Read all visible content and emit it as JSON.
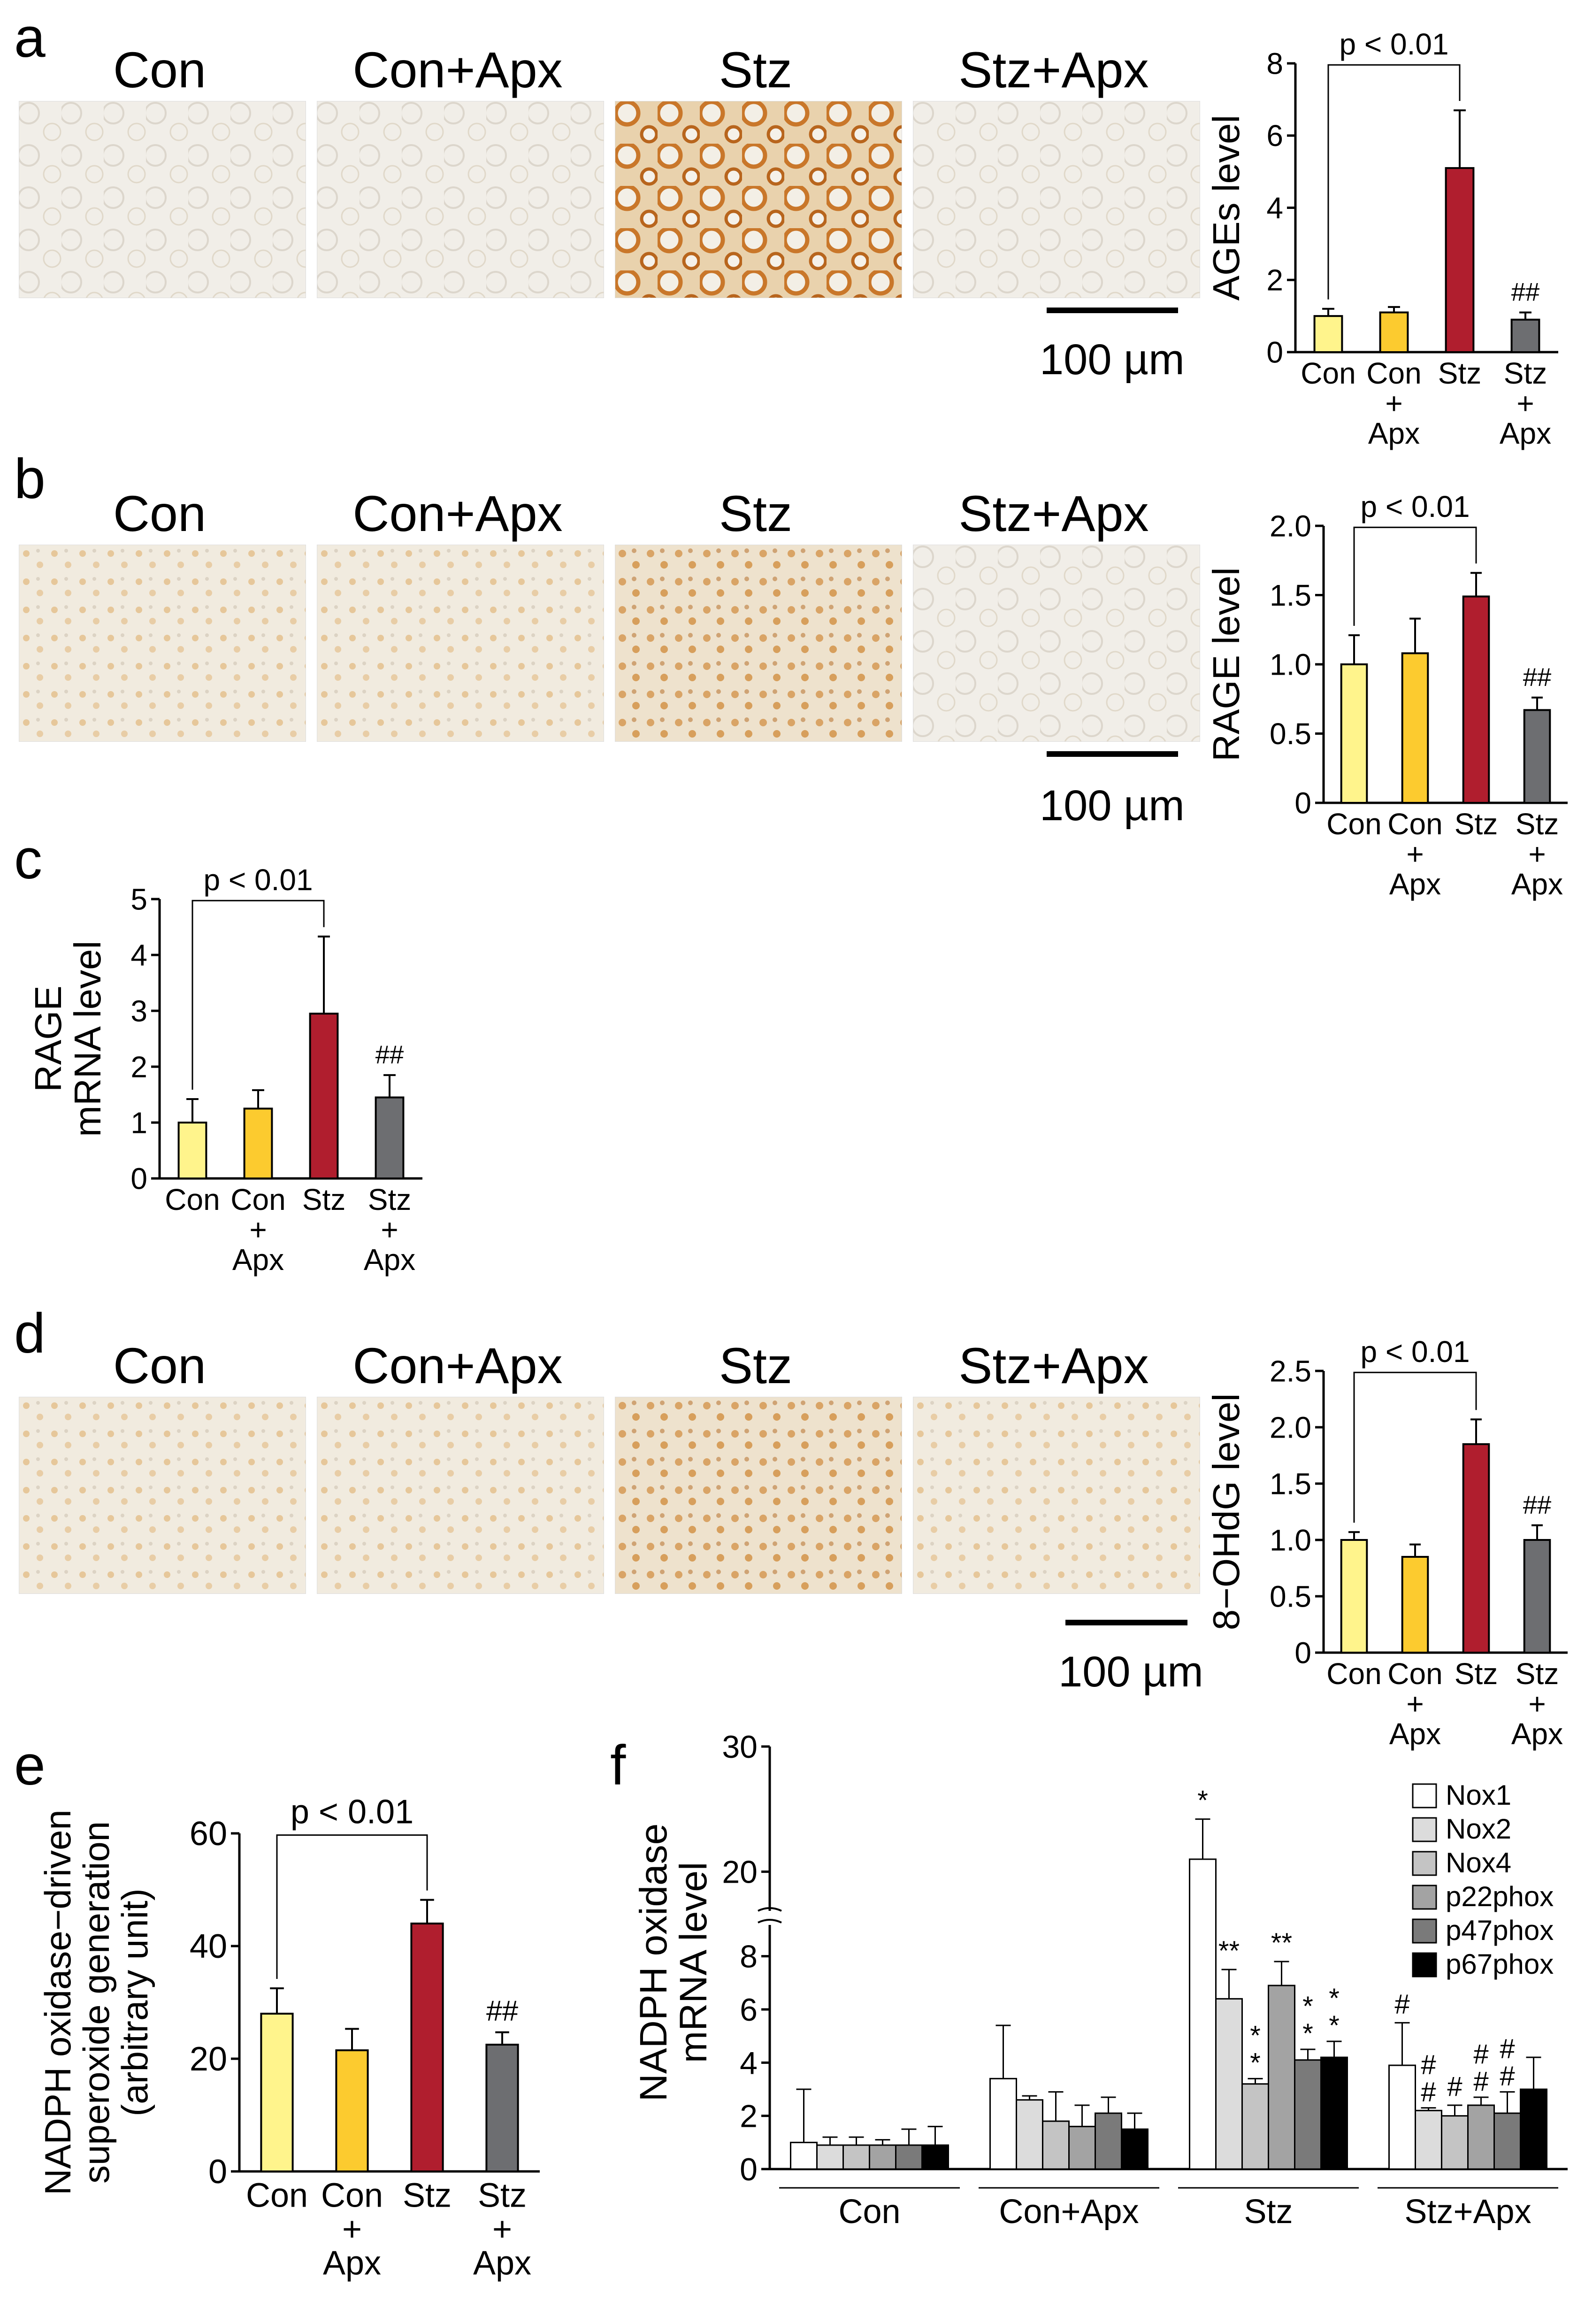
{
  "panel_labels": {
    "a": "a",
    "b": "b",
    "c": "c",
    "d": "d",
    "e": "e",
    "f": "f"
  },
  "micro_titles": [
    "Con",
    "Con+Apx",
    "Stz",
    "Stz+Apx"
  ],
  "scale_bar_text": "100 µm",
  "colors": {
    "con": "#FFF48C",
    "conapx": "#FCCB2F",
    "stz": "#B01E2E",
    "stzapx": "#6D6E71",
    "nox1": "#FFFFFF",
    "nox2": "#DCDCDC",
    "nox4": "#C4C4C4",
    "p22phox": "#A3A3A3",
    "p47phox": "#7A7A7A",
    "p67phox": "#000000"
  },
  "chart_data": [
    {
      "id": "a",
      "type": "bar",
      "ylabel": "AGEs level",
      "ylim": [
        0,
        8
      ],
      "yticks": [
        "0",
        "2",
        "4",
        "6",
        "8"
      ],
      "categories": [
        "Con",
        "Con\n+\nApx",
        "Stz",
        "Stz\n+\nApx"
      ],
      "values": [
        1.0,
        1.1,
        5.1,
        0.9
      ],
      "errors": [
        0.2,
        0.15,
        1.6,
        0.2
      ],
      "significance": "p < 0.01",
      "annotation": "##"
    },
    {
      "id": "b",
      "type": "bar",
      "ylabel": "RAGE level",
      "ylim": [
        0,
        2.0
      ],
      "yticks": [
        "0",
        "0.5",
        "1.0",
        "1.5",
        "2.0"
      ],
      "categories": [
        "Con",
        "Con\n+\nApx",
        "Stz",
        "Stz\n+\nApx"
      ],
      "values": [
        1.0,
        1.08,
        1.49,
        0.67
      ],
      "errors": [
        0.21,
        0.25,
        0.17,
        0.09
      ],
      "significance": "p < 0.01",
      "annotation": "##"
    },
    {
      "id": "c",
      "type": "bar",
      "ylabel": "RAGE\nmRNA level",
      "ylim": [
        0,
        5
      ],
      "yticks": [
        "0",
        "1",
        "2",
        "3",
        "4",
        "5"
      ],
      "categories": [
        "Con",
        "Con\n+\nApx",
        "Stz",
        "Stz\n+\nApx"
      ],
      "values": [
        1.0,
        1.25,
        2.95,
        1.45
      ],
      "errors": [
        0.42,
        0.33,
        1.38,
        0.4
      ],
      "significance": "p < 0.01",
      "annotation": "##"
    },
    {
      "id": "d",
      "type": "bar",
      "ylabel": "8−OHdG level",
      "ylim": [
        0,
        2.5
      ],
      "yticks": [
        "0",
        "0.5",
        "1.0",
        "1.5",
        "2.0",
        "2.5"
      ],
      "categories": [
        "Con",
        "Con\n+\nApx",
        "Stz",
        "Stz\n+\nApx"
      ],
      "values": [
        1.0,
        0.85,
        1.85,
        1.0
      ],
      "errors": [
        0.07,
        0.11,
        0.22,
        0.13
      ],
      "significance": "p < 0.01",
      "annotation": "##"
    },
    {
      "id": "e",
      "type": "bar",
      "ylabel": "NADPH oxidase−driven\nsuperoxide generation\n(arbitrary unit)",
      "ylim": [
        0,
        60
      ],
      "yticks": [
        "0",
        "20",
        "40",
        "60"
      ],
      "categories": [
        "Con",
        "Con\n+\nApx",
        "Stz",
        "Stz\n+\nApx"
      ],
      "values": [
        28,
        21.5,
        44,
        22.5
      ],
      "errors": [
        4.5,
        3.8,
        4.2,
        2.2
      ],
      "significance": "p < 0.01",
      "annotation": "##"
    },
    {
      "id": "f",
      "type": "bar",
      "ylabel": "NADPH oxidase\nmRNA level",
      "ylim": [
        0,
        30
      ],
      "yticks": [
        "0",
        "2",
        "4",
        "6",
        "8",
        "20",
        "30"
      ],
      "axis_break": [
        9,
        18
      ],
      "groups": [
        "Con",
        "Con+Apx",
        "Stz",
        "Stz+Apx"
      ],
      "series": [
        {
          "name": "Nox1",
          "values": [
            1.0,
            3.4,
            21.0,
            3.9
          ],
          "errors": [
            2.0,
            2.0,
            3.2,
            1.6
          ],
          "marks": [
            "",
            "",
            "*",
            "#"
          ]
        },
        {
          "name": "Nox2",
          "values": [
            0.9,
            2.6,
            6.4,
            2.2
          ],
          "errors": [
            0.3,
            0.15,
            1.1,
            0.1
          ],
          "marks": [
            "",
            "",
            "**",
            "#\n#"
          ]
        },
        {
          "name": "Nox4",
          "values": [
            0.9,
            1.8,
            3.2,
            2.0
          ],
          "errors": [
            0.3,
            1.1,
            0.2,
            0.4
          ],
          "marks": [
            "",
            "",
            "*\n*",
            "#"
          ]
        },
        {
          "name": "p22phox",
          "values": [
            0.9,
            1.6,
            6.9,
            2.4
          ],
          "errors": [
            0.2,
            0.8,
            0.9,
            0.3
          ],
          "marks": [
            "",
            "",
            "**",
            "#\n#"
          ]
        },
        {
          "name": "p47phox",
          "values": [
            0.9,
            2.1,
            4.1,
            2.1
          ],
          "errors": [
            0.6,
            0.6,
            0.4,
            0.8
          ],
          "marks": [
            "",
            "",
            "*\n*",
            "#\n#"
          ]
        },
        {
          "name": "p67phox",
          "values": [
            0.9,
            1.5,
            4.2,
            3.0
          ],
          "errors": [
            0.7,
            0.6,
            0.6,
            1.2
          ],
          "marks": [
            "",
            "",
            "*\n*",
            ""
          ]
        }
      ]
    }
  ]
}
